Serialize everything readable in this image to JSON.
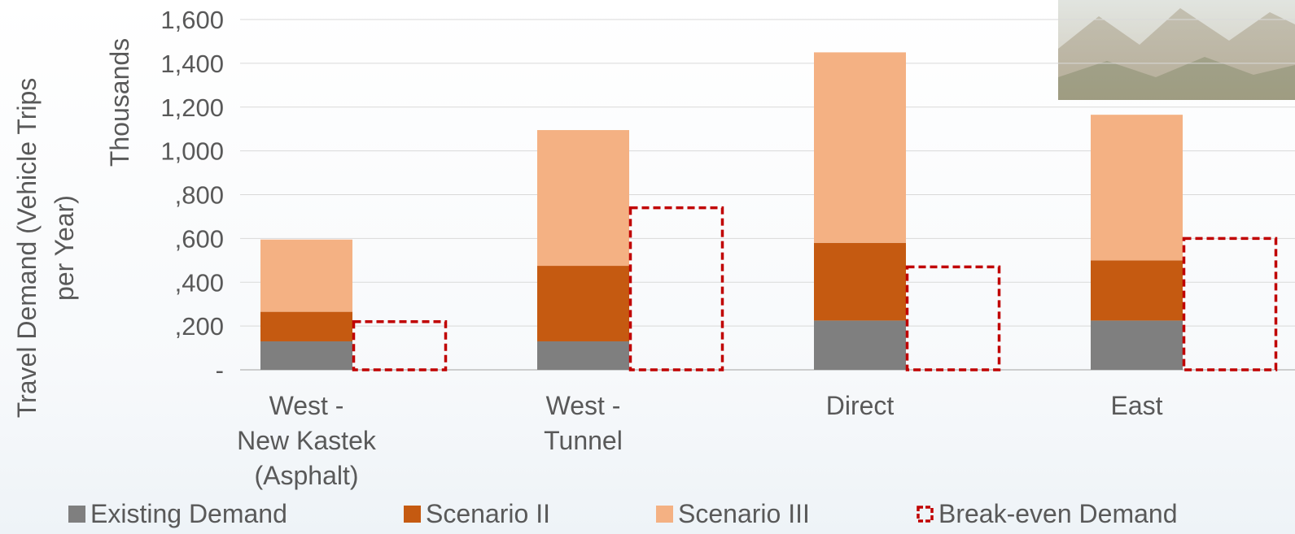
{
  "chart_data": {
    "type": "bar",
    "stacked": true,
    "title": "",
    "ylabel_outer": "Travel Demand (Vehicle Trips per Year)",
    "ylabel_units": "Thousands",
    "categories": [
      [
        "West -",
        "New Kastek",
        "(Asphalt)"
      ],
      [
        "West -",
        "Tunnel"
      ],
      [
        "Direct"
      ],
      [
        "East"
      ]
    ],
    "yticks": [
      {
        "value": 0,
        "label": "-"
      },
      {
        "value": 200,
        "label": ",200"
      },
      {
        "value": 400,
        "label": ",400"
      },
      {
        "value": 600,
        "label": ",600"
      },
      {
        "value": 800,
        "label": ",800"
      },
      {
        "value": 1000,
        "label": "1,000"
      },
      {
        "value": 1200,
        "label": "1,200"
      },
      {
        "value": 1400,
        "label": "1,400"
      },
      {
        "value": 1600,
        "label": "1,600"
      }
    ],
    "ylim": [
      0,
      1600
    ],
    "grid": true,
    "legend_position": "bottom",
    "series": [
      {
        "name": "Existing Demand",
        "color": "#7f7f7f",
        "values": [
          130,
          130,
          225,
          225
        ]
      },
      {
        "name": "Scenario II",
        "color": "#c55a11",
        "values": [
          135,
          345,
          355,
          275
        ]
      },
      {
        "name": "Scenario III",
        "color": "#f4b183",
        "values": [
          330,
          620,
          870,
          665
        ]
      }
    ],
    "break_even": {
      "name": "Break-even Demand",
      "color": "#c00000",
      "style": "dashed-outline",
      "values": [
        220,
        740,
        470,
        600
      ]
    }
  }
}
